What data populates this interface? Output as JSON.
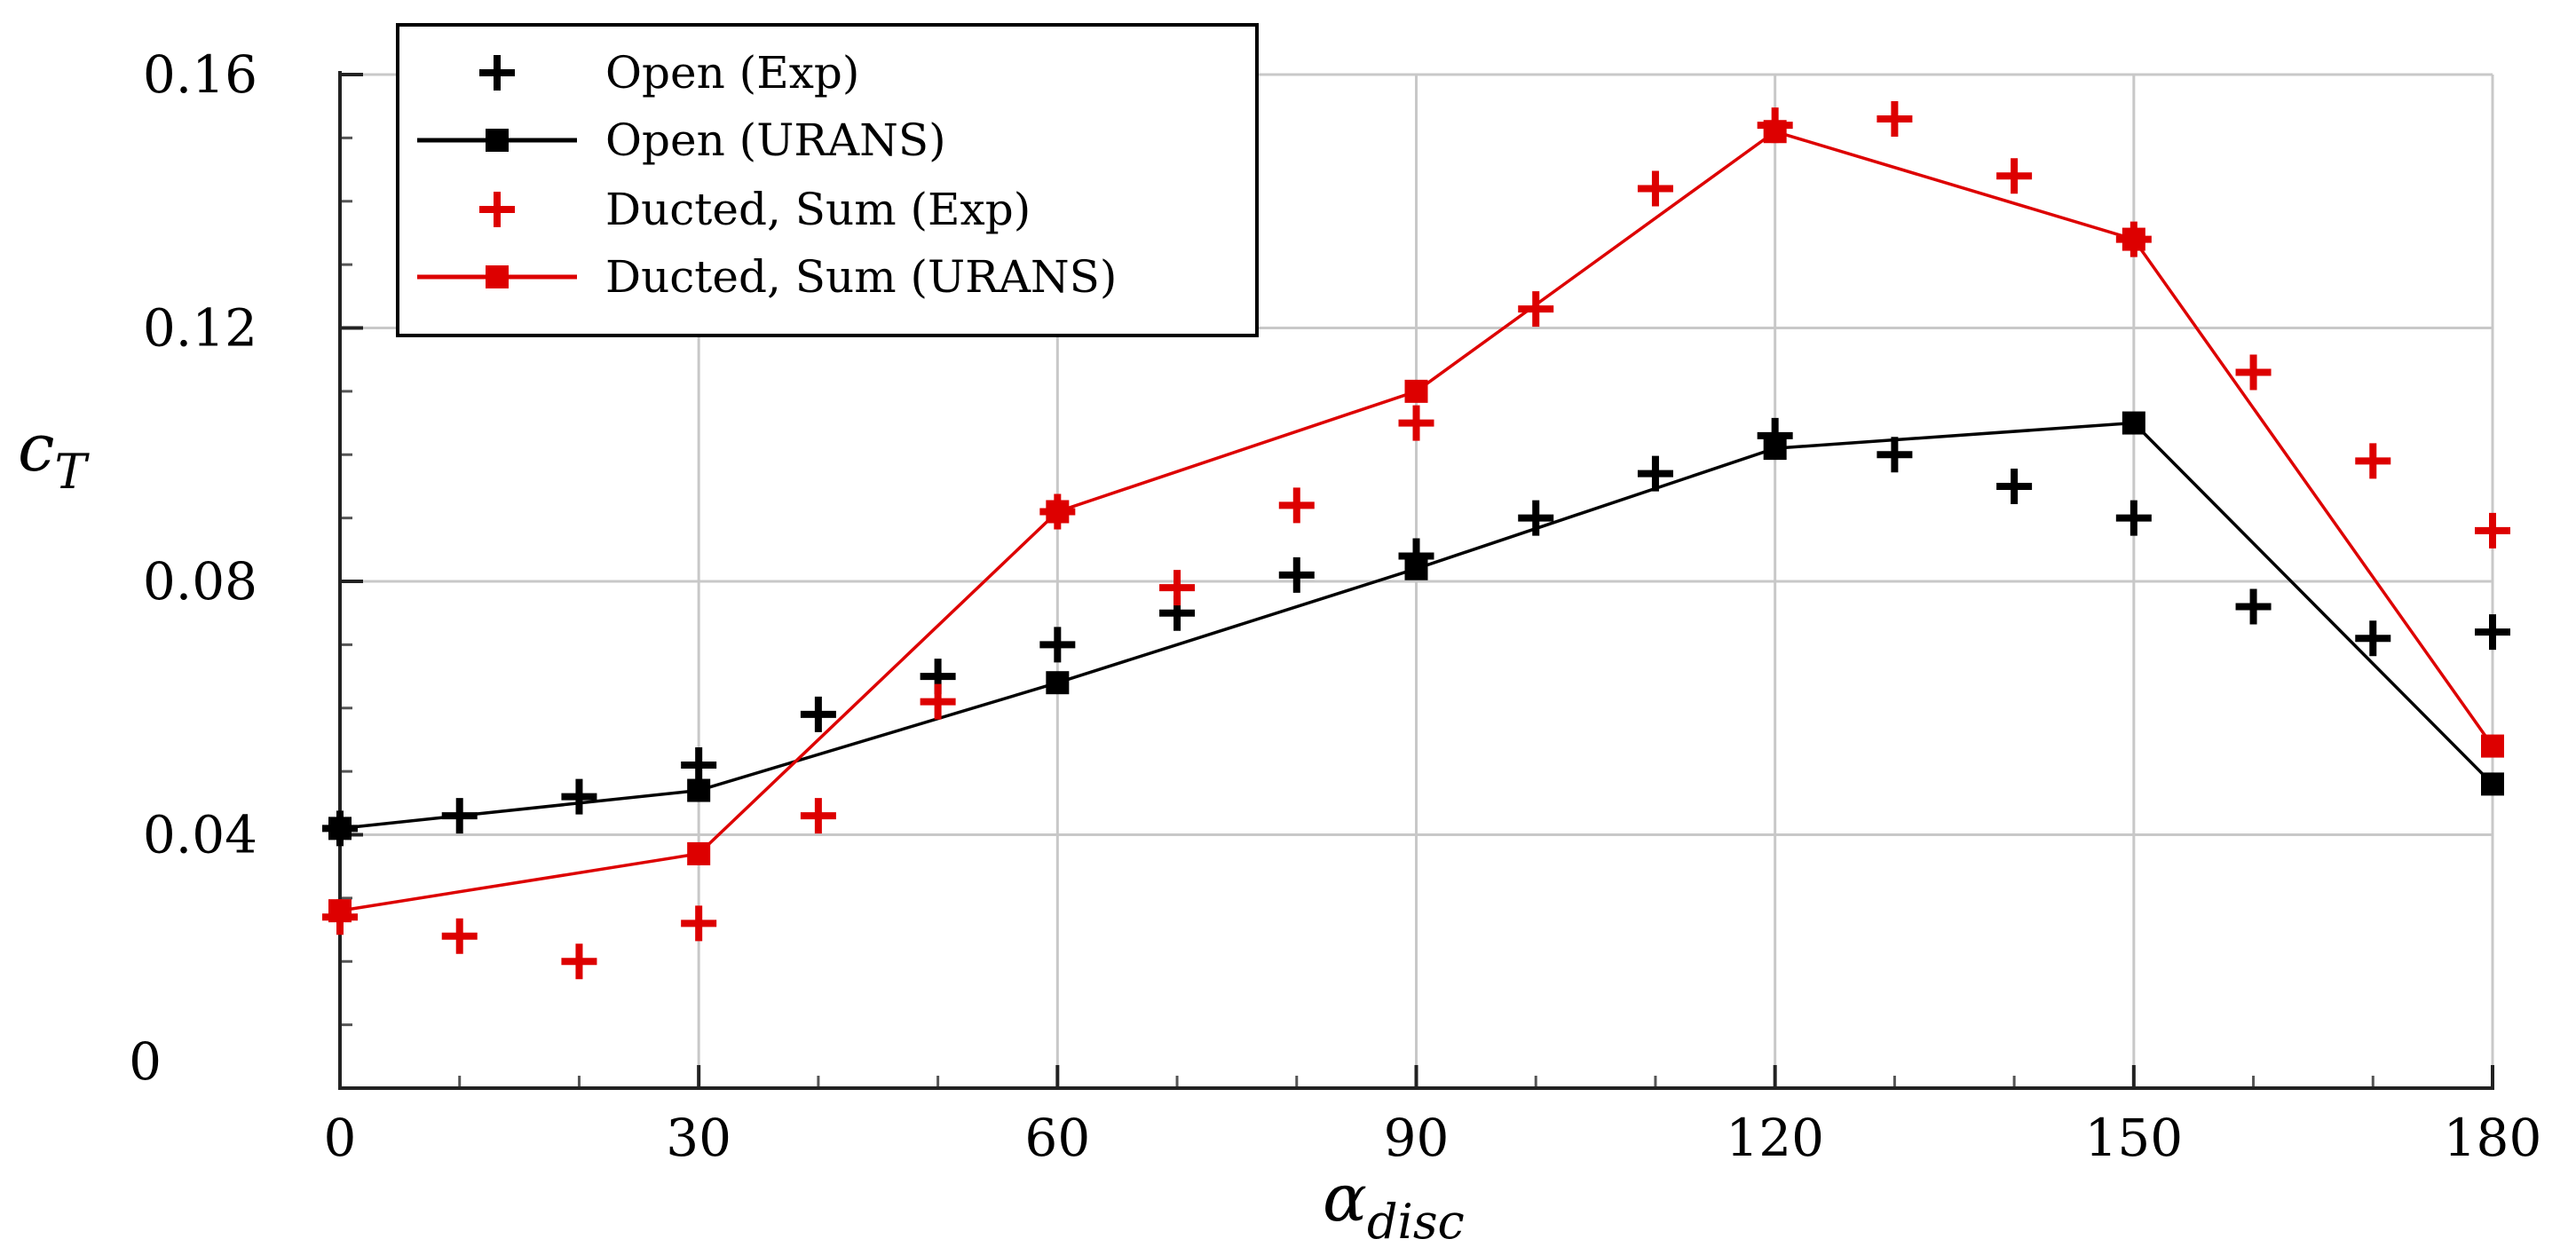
{
  "chart_data": {
    "type": "line",
    "title": "",
    "xlabel": {
      "base": "α",
      "sub": "disc"
    },
    "ylabel": {
      "base": "c",
      "sub": "T"
    },
    "xlim": [
      0,
      180
    ],
    "ylim": [
      0,
      0.16
    ],
    "xticks": [
      0,
      30,
      60,
      90,
      120,
      150,
      180
    ],
    "yticks": [
      0,
      0.04,
      0.08,
      0.12,
      0.16
    ],
    "xtick_labels": [
      "0",
      "30",
      "60",
      "90",
      "120",
      "150",
      "180"
    ],
    "ytick_labels": [
      "0",
      "0.04",
      "0.08",
      "0.12",
      "0.16"
    ],
    "grid": true,
    "legend_position": "top-left",
    "series": [
      {
        "name": "Open (Exp)",
        "style": "markers",
        "marker": "plus",
        "color": "#000000",
        "x": [
          0,
          10,
          20,
          30,
          40,
          50,
          60,
          70,
          80,
          90,
          100,
          110,
          120,
          130,
          140,
          150,
          160,
          170,
          180
        ],
        "y": [
          0.041,
          0.043,
          0.046,
          0.051,
          0.059,
          0.065,
          0.07,
          0.075,
          0.081,
          0.084,
          0.09,
          0.097,
          0.103,
          0.1,
          0.095,
          0.09,
          0.076,
          0.071,
          0.072
        ]
      },
      {
        "name": "Open (URANS)",
        "style": "line-markers",
        "marker": "square",
        "color": "#000000",
        "x": [
          0,
          30,
          60,
          90,
          120,
          150,
          180
        ],
        "y": [
          0.041,
          0.047,
          0.064,
          0.082,
          0.101,
          0.105,
          0.048
        ]
      },
      {
        "name": "Ducted, Sum (Exp)",
        "style": "markers",
        "marker": "plus",
        "color": "#dd0000",
        "x": [
          0,
          10,
          20,
          30,
          40,
          50,
          60,
          70,
          80,
          90,
          100,
          110,
          120,
          130,
          140,
          150,
          160,
          170,
          180
        ],
        "y": [
          0.027,
          0.024,
          0.02,
          0.026,
          0.043,
          0.061,
          0.091,
          0.079,
          0.092,
          0.105,
          0.123,
          0.142,
          0.152,
          0.153,
          0.144,
          0.134,
          0.113,
          0.099,
          0.088
        ]
      },
      {
        "name": "Ducted, Sum (URANS)",
        "style": "line-markers",
        "marker": "square",
        "color": "#dd0000",
        "x": [
          0,
          30,
          60,
          90,
          120,
          150,
          180
        ],
        "y": [
          0.028,
          0.037,
          0.091,
          0.11,
          0.151,
          0.134,
          0.054
        ]
      }
    ]
  }
}
